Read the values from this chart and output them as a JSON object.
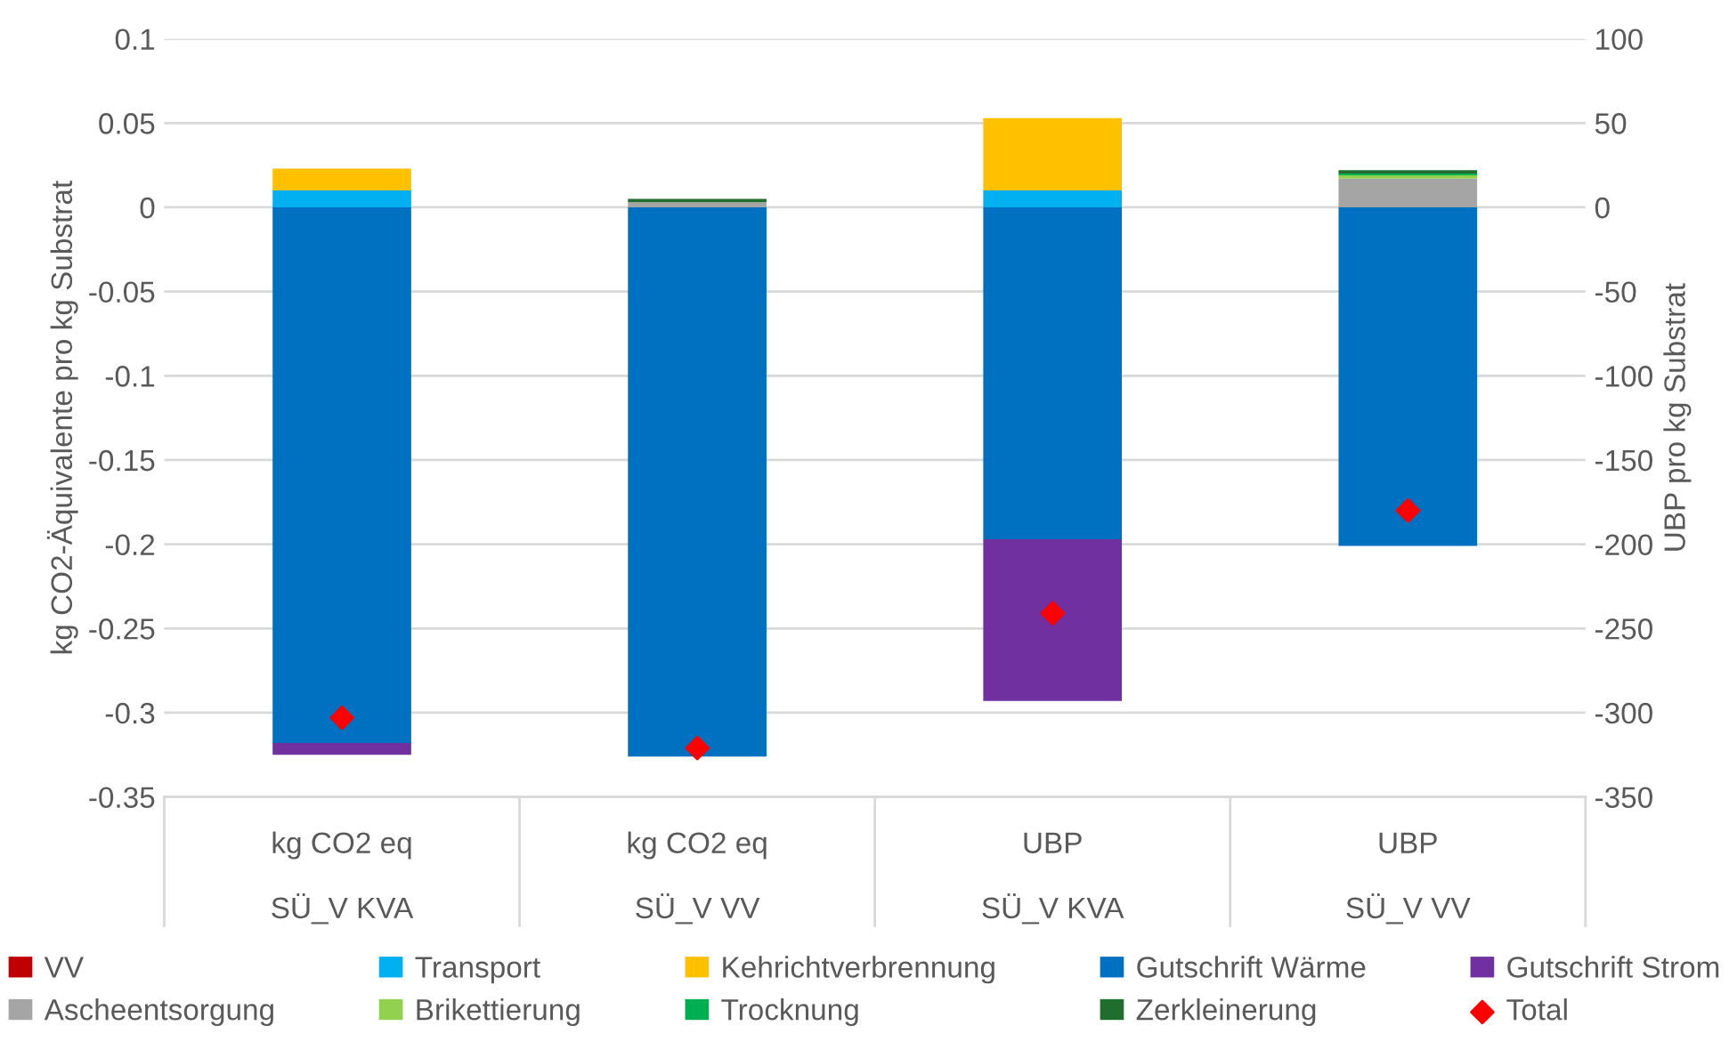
{
  "chart_data": {
    "type": "bar",
    "stacked": true,
    "ylabel": "kg CO2-Äquivalente pro kg Substrat",
    "y2label": "UBP pro kg Substrat",
    "categories": [
      "kg CO2 eq\nSÜ_V KVA",
      "kg CO2 eq\nSÜ_V VV",
      "UBP\nSÜ_V KVA",
      "UBP\nSÜ_V VV"
    ],
    "ylim": [
      -0.35,
      0.1
    ],
    "yticks": [
      -0.35,
      -0.3,
      -0.25,
      -0.2,
      -0.15,
      -0.1,
      -0.05,
      0,
      0.05,
      0.1
    ],
    "y2lim": [
      -350,
      100
    ],
    "y2ticks": [
      -350,
      -300,
      -250,
      -200,
      -150,
      -100,
      -50,
      0,
      50,
      100
    ],
    "grid": "y",
    "legend": "bottom",
    "series": [
      {
        "name": "VV",
        "color": "#c00000",
        "axis": "y",
        "values": [
          0,
          0,
          null,
          null
        ]
      },
      {
        "name": "Transport",
        "color": "#00b0f0",
        "axis": "y",
        "values": [
          0.01,
          0,
          null,
          null
        ]
      },
      {
        "name": "Kehrichtverbrennung",
        "color": "#ffc000",
        "axis": "y",
        "values": [
          0.013,
          0,
          null,
          null
        ]
      },
      {
        "name": "Gutschrift Wärme",
        "color": "#0070c0",
        "axis": "y",
        "values": [
          -0.318,
          -0.326,
          null,
          null
        ]
      },
      {
        "name": "Gutschrift Strom",
        "color": "#7030a0",
        "axis": "y",
        "values": [
          -0.007,
          0,
          null,
          null
        ]
      },
      {
        "name": "Ascheentsorgung",
        "color": "#a5a5a5",
        "axis": "y",
        "values": [
          0,
          0.003,
          null,
          null
        ]
      },
      {
        "name": "Brikettierung",
        "color": "#92d050",
        "axis": "y",
        "values": [
          0,
          0,
          null,
          null
        ]
      },
      {
        "name": "Trocknung",
        "color": "#00b050",
        "axis": "y",
        "values": [
          0,
          0,
          null,
          null
        ]
      },
      {
        "name": "Zerkleinerung",
        "color": "#1f6e2e",
        "axis": "y",
        "values": [
          0,
          0.002,
          null,
          null
        ]
      },
      {
        "name": "Total",
        "color": "#ff0000",
        "axis": "y",
        "type": "scatter",
        "marker": "diamond",
        "values": [
          -0.303,
          -0.321,
          null,
          null
        ]
      },
      {
        "color": "#c00000",
        "axis": "y2",
        "values": [
          null,
          null,
          0,
          0
        ]
      },
      {
        "color": "#00b0f0",
        "axis": "y2",
        "values": [
          null,
          null,
          10,
          0
        ]
      },
      {
        "color": "#ffc000",
        "axis": "y2",
        "values": [
          null,
          null,
          43,
          0
        ]
      },
      {
        "color": "#0070c0",
        "axis": "y2",
        "values": [
          null,
          null,
          -197,
          -201
        ]
      },
      {
        "color": "#7030a0",
        "axis": "y2",
        "values": [
          null,
          null,
          -96,
          0
        ]
      },
      {
        "color": "#a5a5a5",
        "axis": "y2",
        "values": [
          null,
          null,
          0,
          17
        ]
      },
      {
        "color": "#92d050",
        "axis": "y2",
        "values": [
          null,
          null,
          0,
          2
        ]
      },
      {
        "color": "#00b050",
        "axis": "y2",
        "values": [
          null,
          null,
          0,
          1
        ]
      },
      {
        "color": "#1f6e2e",
        "axis": "y2",
        "values": [
          null,
          null,
          0,
          2
        ]
      },
      {
        "color": "#ff0000",
        "axis": "y2",
        "type": "scatter",
        "marker": "diamond",
        "values": [
          null,
          null,
          -241,
          -180
        ]
      }
    ]
  }
}
